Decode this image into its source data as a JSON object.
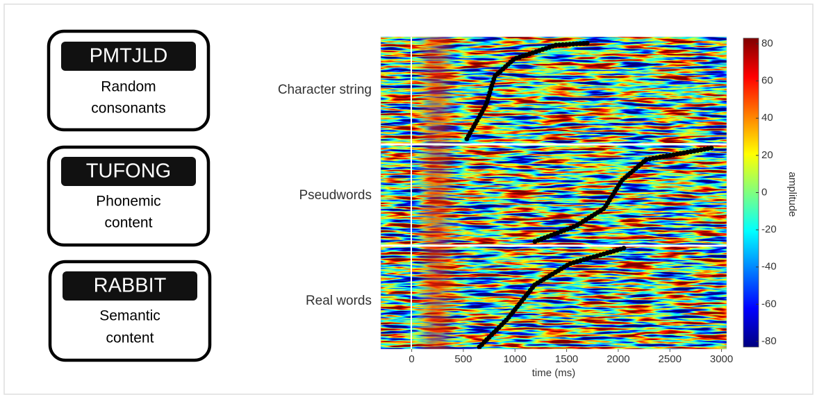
{
  "panels": [
    {
      "word": "PMTJLD",
      "description": [
        "Random",
        "consonants"
      ]
    },
    {
      "word": "TUFONG",
      "description": [
        "Phonemic",
        "content"
      ]
    },
    {
      "word": "RABBIT",
      "description": [
        "Semantic",
        "content"
      ]
    }
  ],
  "figure": {
    "row_labels": [
      "Character string",
      "Pseudwords",
      "Real words"
    ],
    "x_label": "time (ms)",
    "xlim": [
      -300,
      3050
    ],
    "xticks": [
      0,
      500,
      1000,
      1500,
      2000,
      2500,
      3000
    ],
    "colorbar": {
      "label": "amplitude",
      "lim": [
        -83,
        83
      ],
      "ticks": [
        80,
        60,
        40,
        20,
        0,
        -20,
        -40,
        -60,
        -80
      ]
    }
  }
}
